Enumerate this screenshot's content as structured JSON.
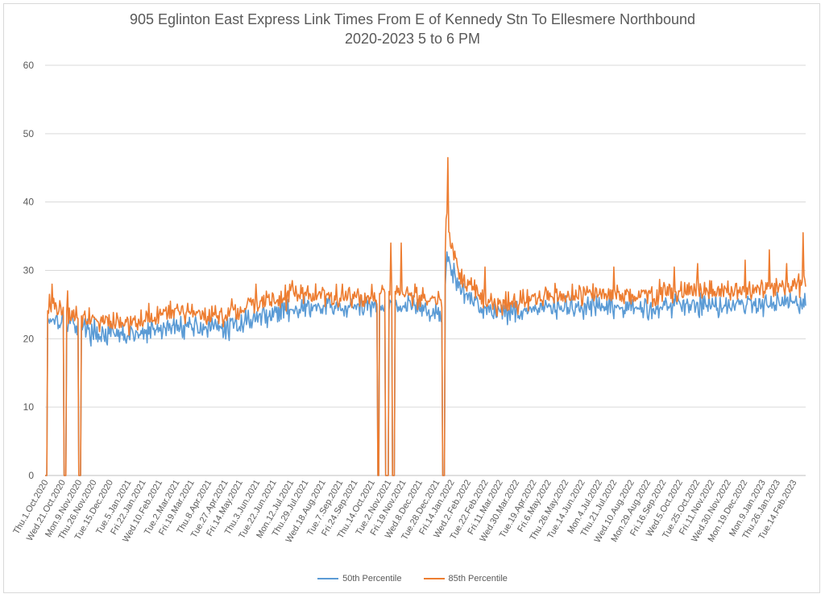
{
  "chart_data": {
    "type": "line",
    "title": "905 Eglinton East Express Link Times From E of Kennedy Stn To Ellesmere Northbound",
    "subtitle": "2020-2023 5 to 6 PM",
    "xlabel": "",
    "ylabel": "",
    "ylim": [
      0,
      60
    ],
    "yticks": [
      0,
      10,
      20,
      30,
      40,
      50,
      60
    ],
    "grid": true,
    "legend_position": "bottom",
    "x_start": "2020-10-01",
    "x_end": "2023-02-28",
    "x_tick_labels": [
      "Thu.1.Oct.2020",
      "Wed.21.Oct.2020",
      "Mon.9.Nov.2020",
      "Thu.26.Nov.2020",
      "Tue.15.Dec.2020",
      "Tue.5.Jan.2021",
      "Fri.22.Jan.2021",
      "Wed.10.Feb.2021",
      "Tue.2.Mar.2021",
      "Fri.19.Mar.2021",
      "Thu.8.Apr.2021",
      "Tue.27.Apr.2021",
      "Fri.14.May.2021",
      "Thu.3.Jun.2021",
      "Tue.22.Jun.2021",
      "Mon.12.Jul.2021",
      "Thu.29.Jul.2021",
      "Wed.18.Aug.2021",
      "Tue.7.Sep.2021",
      "Fri.24.Sep.2021",
      "Thu.14.Oct.2021",
      "Tue.2.Nov.2021",
      "Fri.19.Nov.2021",
      "Wed.8.Dec.2021",
      "Tue.28.Dec.2021",
      "Fri.14.Jan.2022",
      "Wed.2.Feb.2022",
      "Tue.22.Feb.2022",
      "Fri.11.Mar.2022",
      "Wed.30.Mar.2022",
      "Tue.19.Apr.2022",
      "Fri.6.May.2022",
      "Thu.26.May.2022",
      "Tue.14.Jun.2022",
      "Mon.4.Jul.2022",
      "Thu.21.Jul.2022",
      "Wed.10.Aug.2022",
      "Mon.29.Aug.2022",
      "Fri.16.Sep.2022",
      "Wed.5.Oct.2022",
      "Tue.25.Oct.2022",
      "Fri.11.Nov.2022",
      "Wed.30.Nov.2022",
      "Mon.19.Dec.2022",
      "Mon.9.Jan.2023",
      "Thu.26.Jan.2023",
      "Tue.14.Feb.2023"
    ],
    "series": [
      {
        "name": "50th Percentile",
        "color": "#5b9bd5",
        "anchors": [
          [
            "2020-10-01",
            0
          ],
          [
            "2020-10-03",
            0
          ],
          [
            "2020-10-04",
            23
          ],
          [
            "2020-10-15",
            23
          ],
          [
            "2020-10-25",
            22.5
          ],
          [
            "2020-11-10",
            22
          ],
          [
            "2020-11-25",
            21
          ],
          [
            "2020-12-15",
            20.5
          ],
          [
            "2021-01-15",
            20.5
          ],
          [
            "2021-02-15",
            21.5
          ],
          [
            "2021-03-15",
            22
          ],
          [
            "2021-04-15",
            21.5
          ],
          [
            "2021-05-01",
            21.5
          ],
          [
            "2021-05-15",
            22.5
          ],
          [
            "2021-06-15",
            23.5
          ],
          [
            "2021-07-15",
            24.5
          ],
          [
            "2021-08-15",
            24.5
          ],
          [
            "2021-09-15",
            24.5
          ],
          [
            "2021-10-05",
            24.5
          ],
          [
            "2021-10-20",
            25
          ],
          [
            "2021-11-15",
            25
          ],
          [
            "2021-12-10",
            24.5
          ],
          [
            "2021-12-28",
            23.5
          ],
          [
            "2022-01-05",
            23
          ],
          [
            "2022-01-09",
            32.5
          ],
          [
            "2022-01-14",
            30
          ],
          [
            "2022-01-25",
            27
          ],
          [
            "2022-02-10",
            25.5
          ],
          [
            "2022-03-01",
            24
          ],
          [
            "2022-04-01",
            24
          ],
          [
            "2022-05-01",
            24.5
          ],
          [
            "2022-06-01",
            24.5
          ],
          [
            "2022-07-01",
            24.5
          ],
          [
            "2022-08-01",
            24.5
          ],
          [
            "2022-09-01",
            24.5
          ],
          [
            "2022-10-01",
            25
          ],
          [
            "2022-11-01",
            25
          ],
          [
            "2022-12-01",
            25
          ],
          [
            "2023-01-01",
            25
          ],
          [
            "2023-01-20",
            25.5
          ],
          [
            "2023-02-28",
            25.5
          ]
        ],
        "gaps": [
          [
            "2020-10-23",
            "2020-10-25"
          ],
          [
            "2020-11-09",
            "2020-11-11"
          ],
          [
            "2021-10-21",
            "2021-10-22"
          ],
          [
            "2021-10-30",
            "2021-11-02"
          ],
          [
            "2021-11-07",
            "2021-11-09"
          ],
          [
            "2022-01-04",
            "2022-01-06"
          ]
        ]
      },
      {
        "name": "85th Percentile",
        "color": "#ed7d31",
        "anchors": [
          [
            "2020-10-01",
            0
          ],
          [
            "2020-10-03",
            0
          ],
          [
            "2020-10-04",
            25
          ],
          [
            "2020-10-15",
            24.5
          ],
          [
            "2020-10-25",
            24
          ],
          [
            "2020-11-10",
            23.5
          ],
          [
            "2020-11-25",
            23
          ],
          [
            "2020-12-15",
            22.5
          ],
          [
            "2021-01-15",
            22.5
          ],
          [
            "2021-02-15",
            23.5
          ],
          [
            "2021-03-15",
            24
          ],
          [
            "2021-04-15",
            23.5
          ],
          [
            "2021-05-01",
            23.5
          ],
          [
            "2021-05-15",
            24.5
          ],
          [
            "2021-06-15",
            25.5
          ],
          [
            "2021-07-15",
            26.5
          ],
          [
            "2021-08-15",
            26.5
          ],
          [
            "2021-09-15",
            26
          ],
          [
            "2021-10-05",
            26
          ],
          [
            "2021-10-20",
            26.5
          ],
          [
            "2021-11-15",
            27
          ],
          [
            "2021-12-10",
            26
          ],
          [
            "2021-12-28",
            25.5
          ],
          [
            "2022-01-05",
            26
          ],
          [
            "2022-01-09",
            38
          ],
          [
            "2022-01-14",
            33
          ],
          [
            "2022-01-25",
            29
          ],
          [
            "2022-02-10",
            27
          ],
          [
            "2022-03-01",
            25
          ],
          [
            "2022-04-01",
            25.5
          ],
          [
            "2022-05-01",
            26
          ],
          [
            "2022-06-01",
            26.5
          ],
          [
            "2022-07-01",
            26.5
          ],
          [
            "2022-08-01",
            26.5
          ],
          [
            "2022-09-01",
            26.5
          ],
          [
            "2022-10-01",
            27
          ],
          [
            "2022-11-01",
            27
          ],
          [
            "2022-12-01",
            27
          ],
          [
            "2023-01-01",
            27
          ],
          [
            "2023-01-20",
            27.5
          ],
          [
            "2023-02-28",
            28
          ]
        ],
        "gaps": [
          [
            "2020-10-23",
            "2020-10-25"
          ],
          [
            "2020-11-09",
            "2020-11-11"
          ],
          [
            "2021-10-21",
            "2021-10-22"
          ],
          [
            "2021-10-30",
            "2021-11-02"
          ],
          [
            "2021-11-07",
            "2021-11-09"
          ],
          [
            "2022-01-04",
            "2022-01-06"
          ]
        ],
        "spikes": [
          [
            "2020-10-06",
            26.5
          ],
          [
            "2020-10-09",
            28
          ],
          [
            "2020-10-27",
            27
          ],
          [
            "2021-06-02",
            28
          ],
          [
            "2021-07-14",
            28.5
          ],
          [
            "2021-09-10",
            28
          ],
          [
            "2021-11-05",
            34
          ],
          [
            "2021-11-17",
            34
          ],
          [
            "2022-01-08",
            37.5
          ],
          [
            "2022-01-10",
            46.5
          ],
          [
            "2022-01-12",
            35.5
          ],
          [
            "2022-02-22",
            30.5
          ],
          [
            "2022-07-21",
            30.5
          ],
          [
            "2022-09-29",
            30.5
          ],
          [
            "2022-10-26",
            31
          ],
          [
            "2022-12-20",
            31.5
          ],
          [
            "2023-01-17",
            33
          ],
          [
            "2023-02-06",
            31
          ],
          [
            "2023-02-25",
            35.5
          ]
        ]
      }
    ]
  }
}
